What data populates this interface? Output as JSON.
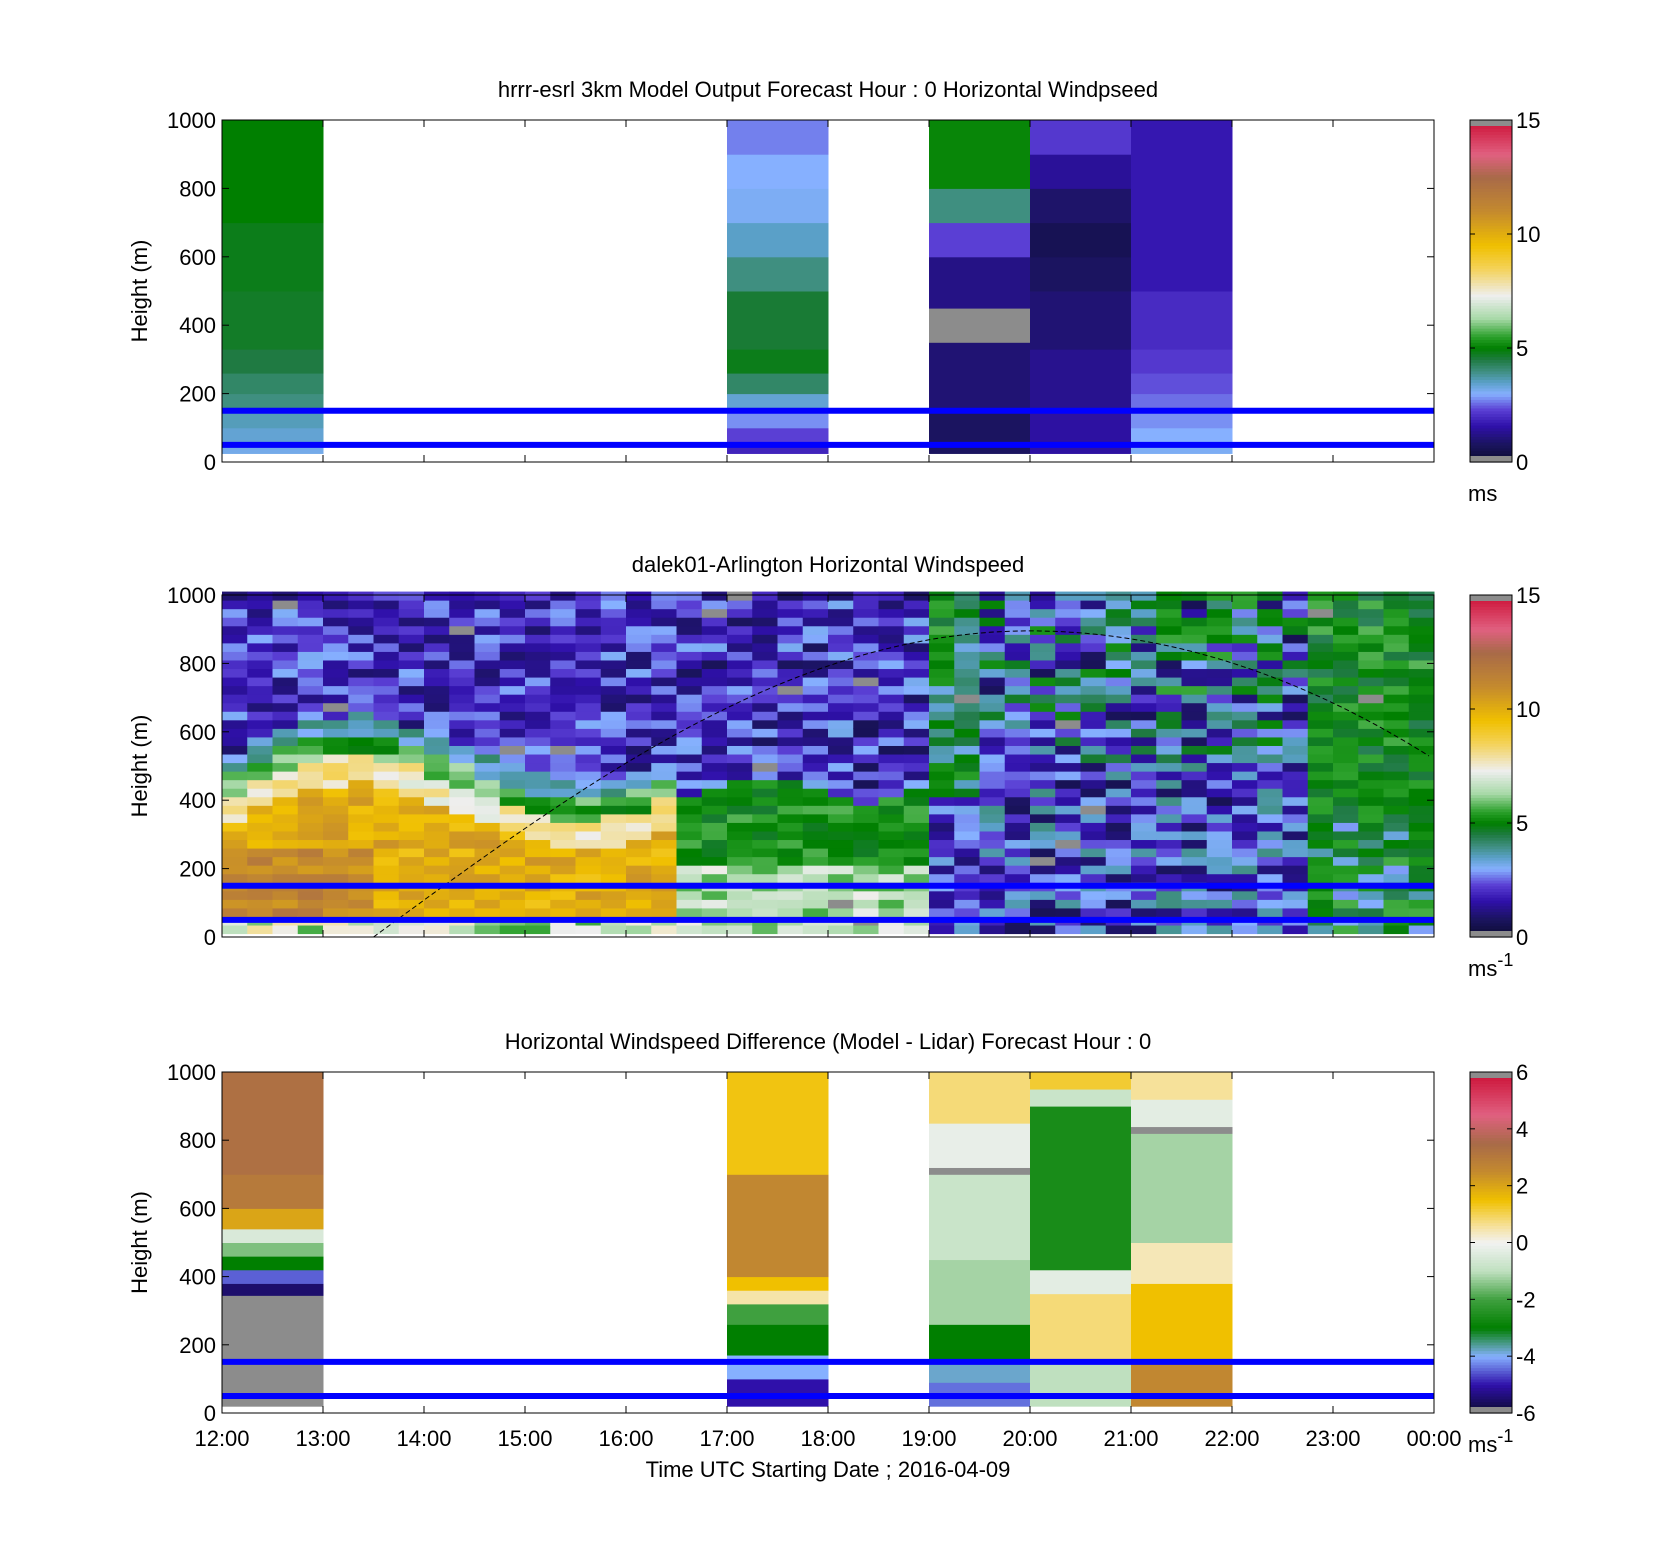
{
  "chart_data": [
    {
      "type": "heatmap",
      "id": "model",
      "title": "hrrr-esrl 3km Model Output   Forecast Hour : 0 Horizontal Windpseed",
      "ylabel": "Height (m)",
      "xlim": [
        12,
        24
      ],
      "ylim": [
        0,
        1000
      ],
      "yticks": [
        0,
        200,
        400,
        600,
        800,
        1000
      ],
      "xtick_labels": [
        "",
        "",
        "",
        "",
        "",
        "",
        "",
        "",
        "",
        "",
        "",
        "",
        ""
      ],
      "color_scale": {
        "min": 0,
        "max": 15,
        "ticks": [
          0,
          5,
          10,
          15
        ],
        "unit": "ms",
        "unit_sup": ""
      },
      "reference_lines_m": [
        150,
        50
      ],
      "columns": [
        {
          "t0": 12,
          "t1": 13,
          "bottom": 25,
          "levels": [
            {
              "y0": 25,
              "y1": 60,
              "v": 3.2
            },
            {
              "y0": 60,
              "y1": 100,
              "v": 3.4
            },
            {
              "y0": 100,
              "y1": 150,
              "v": 3.6
            },
            {
              "y0": 150,
              "y1": 200,
              "v": 4.0
            },
            {
              "y0": 200,
              "y1": 260,
              "v": 4.2
            },
            {
              "y0": 260,
              "y1": 330,
              "v": 4.5
            },
            {
              "y0": 330,
              "y1": 500,
              "v": 4.7
            },
            {
              "y0": 500,
              "y1": 700,
              "v": 4.8
            },
            {
              "y0": 700,
              "y1": 1000,
              "v": 5.0
            }
          ]
        },
        {
          "t0": 17,
          "t1": 18,
          "bottom": 25,
          "levels": [
            {
              "y0": 25,
              "y1": 60,
              "v": 1.9
            },
            {
              "y0": 60,
              "y1": 100,
              "v": 2.3
            },
            {
              "y0": 100,
              "y1": 150,
              "v": 2.8
            },
            {
              "y0": 150,
              "y1": 200,
              "v": 3.4
            },
            {
              "y0": 200,
              "y1": 260,
              "v": 4.2
            },
            {
              "y0": 260,
              "y1": 330,
              "v": 4.8
            },
            {
              "y0": 330,
              "y1": 500,
              "v": 4.6
            },
            {
              "y0": 500,
              "y1": 600,
              "v": 4.0
            },
            {
              "y0": 600,
              "y1": 700,
              "v": 3.5
            },
            {
              "y0": 700,
              "y1": 800,
              "v": 3.1
            },
            {
              "y0": 800,
              "y1": 900,
              "v": 3.0
            },
            {
              "y0": 900,
              "y1": 1000,
              "v": 2.7
            }
          ]
        },
        {
          "t0": 19,
          "t1": 20,
          "bottom": 25,
          "levels": [
            {
              "y0": 25,
              "y1": 150,
              "v": 0.8
            },
            {
              "y0": 150,
              "y1": 350,
              "v": 1.0
            },
            {
              "y0": 350,
              "y1": 450,
              "v": 15.0
            },
            {
              "y0": 450,
              "y1": 600,
              "v": 1.2
            },
            {
              "y0": 600,
              "y1": 700,
              "v": 2.3
            },
            {
              "y0": 700,
              "y1": 800,
              "v": 4.0
            },
            {
              "y0": 800,
              "y1": 1000,
              "v": 5.1
            }
          ]
        },
        {
          "t0": 20,
          "t1": 21,
          "bottom": 25,
          "levels": [
            {
              "y0": 25,
              "y1": 150,
              "v": 1.5
            },
            {
              "y0": 150,
              "y1": 330,
              "v": 1.3
            },
            {
              "y0": 330,
              "y1": 500,
              "v": 1.0
            },
            {
              "y0": 500,
              "y1": 600,
              "v": 0.8
            },
            {
              "y0": 600,
              "y1": 700,
              "v": 0.6
            },
            {
              "y0": 700,
              "y1": 800,
              "v": 0.9
            },
            {
              "y0": 800,
              "y1": 900,
              "v": 1.4
            },
            {
              "y0": 900,
              "y1": 1000,
              "v": 2.2
            }
          ]
        },
        {
          "t0": 21,
          "t1": 22,
          "bottom": 25,
          "levels": [
            {
              "y0": 25,
              "y1": 60,
              "v": 3.1
            },
            {
              "y0": 60,
              "y1": 100,
              "v": 3.0
            },
            {
              "y0": 100,
              "y1": 150,
              "v": 2.8
            },
            {
              "y0": 150,
              "y1": 200,
              "v": 2.6
            },
            {
              "y0": 200,
              "y1": 260,
              "v": 2.4
            },
            {
              "y0": 260,
              "y1": 330,
              "v": 2.2
            },
            {
              "y0": 330,
              "y1": 500,
              "v": 2.0
            },
            {
              "y0": 500,
              "y1": 1000,
              "v": 1.7
            }
          ]
        }
      ]
    },
    {
      "type": "heatmap",
      "id": "lidar",
      "title": "dalek01-Arlington  Horizontal Windspeed",
      "ylabel": "Height (m)",
      "xlim": [
        12,
        24
      ],
      "ylim": [
        0,
        1000
      ],
      "yticks": [
        0,
        200,
        400,
        600,
        800,
        1000
      ],
      "xtick_labels": [
        "",
        "",
        "",
        "",
        "",
        "",
        "",
        "",
        "",
        "",
        "",
        "",
        ""
      ],
      "color_scale": {
        "min": 0,
        "max": 15,
        "ticks": [
          0,
          5,
          10,
          15
        ],
        "unit": "ms",
        "unit_sup": "-1"
      },
      "reference_lines_m": [
        150,
        50
      ],
      "boundary_layer_curve": {
        "t_start": 13.5,
        "t_peak": 20.0,
        "h_peak": 895,
        "t_end": 24.0,
        "h_end": 520
      },
      "time_step_h": 0.25,
      "time_end": 23.9,
      "level_step_m": 25,
      "bottom_m": 10
    },
    {
      "type": "heatmap",
      "id": "diff",
      "title": "Horizontal Windspeed Difference (Model - Lidar) Forecast Hour : 0",
      "ylabel": "Height (m)",
      "xlabel": "Time UTC  Starting Date ; 2016-04-09",
      "xlim": [
        12,
        24
      ],
      "ylim": [
        0,
        1000
      ],
      "yticks": [
        0,
        200,
        400,
        600,
        800,
        1000
      ],
      "xtick_labels": [
        "12:00",
        "13:00",
        "14:00",
        "15:00",
        "16:00",
        "17:00",
        "18:00",
        "19:00",
        "20:00",
        "21:00",
        "22:00",
        "23:00",
        "00:00"
      ],
      "color_scale": {
        "min": -6,
        "max": 6,
        "ticks": [
          -6,
          -4,
          -2,
          0,
          2,
          4,
          6
        ],
        "unit": "ms",
        "unit_sup": "-1"
      },
      "reference_lines_m": [
        150,
        50
      ],
      "columns": [
        {
          "t0": 12,
          "t1": 13,
          "bottom": 20,
          "levels": [
            {
              "y0": 20,
              "y1": 345,
              "v": 6.0
            },
            {
              "y0": 345,
              "y1": 380,
              "v": -5.5
            },
            {
              "y0": 380,
              "y1": 420,
              "v": -4.5
            },
            {
              "y0": 420,
              "y1": 460,
              "v": -3.0
            },
            {
              "y0": 460,
              "y1": 500,
              "v": -1.5
            },
            {
              "y0": 500,
              "y1": 540,
              "v": -0.5
            },
            {
              "y0": 540,
              "y1": 600,
              "v": 2.0
            },
            {
              "y0": 600,
              "y1": 700,
              "v": 3.0
            },
            {
              "y0": 700,
              "y1": 1000,
              "v": 3.3
            }
          ]
        },
        {
          "t0": 17,
          "t1": 18,
          "bottom": 20,
          "levels": [
            {
              "y0": 20,
              "y1": 100,
              "v": -5.0
            },
            {
              "y0": 100,
              "y1": 170,
              "v": -4.0
            },
            {
              "y0": 170,
              "y1": 260,
              "v": -3.0
            },
            {
              "y0": 260,
              "y1": 320,
              "v": -2.0
            },
            {
              "y0": 320,
              "y1": 360,
              "v": 0.5
            },
            {
              "y0": 360,
              "y1": 400,
              "v": 1.5
            },
            {
              "y0": 400,
              "y1": 700,
              "v": 2.6
            },
            {
              "y0": 700,
              "y1": 1000,
              "v": 1.4
            }
          ]
        },
        {
          "t0": 19,
          "t1": 20,
          "bottom": 20,
          "levels": [
            {
              "y0": 20,
              "y1": 90,
              "v": -4.4
            },
            {
              "y0": 90,
              "y1": 150,
              "v": -3.8
            },
            {
              "y0": 150,
              "y1": 260,
              "v": -3.0
            },
            {
              "y0": 260,
              "y1": 450,
              "v": -1.2
            },
            {
              "y0": 450,
              "y1": 700,
              "v": -0.8
            },
            {
              "y0": 700,
              "y1": 720,
              "v": 6.0
            },
            {
              "y0": 720,
              "y1": 850,
              "v": -0.2
            },
            {
              "y0": 850,
              "y1": 1000,
              "v": 0.8
            }
          ]
        },
        {
          "t0": 20,
          "t1": 21,
          "bottom": 20,
          "levels": [
            {
              "y0": 20,
              "y1": 150,
              "v": -1.0
            },
            {
              "y0": 150,
              "y1": 350,
              "v": 0.8
            },
            {
              "y0": 350,
              "y1": 420,
              "v": -0.3
            },
            {
              "y0": 420,
              "y1": 900,
              "v": -2.6
            },
            {
              "y0": 900,
              "y1": 950,
              "v": -0.8
            },
            {
              "y0": 950,
              "y1": 1000,
              "v": 1.2
            }
          ]
        },
        {
          "t0": 21,
          "t1": 22,
          "bottom": 20,
          "levels": [
            {
              "y0": 20,
              "y1": 150,
              "v": 2.6
            },
            {
              "y0": 150,
              "y1": 380,
              "v": 1.5
            },
            {
              "y0": 380,
              "y1": 500,
              "v": 0.4
            },
            {
              "y0": 500,
              "y1": 820,
              "v": -1.2
            },
            {
              "y0": 820,
              "y1": 840,
              "v": 6.0
            },
            {
              "y0": 840,
              "y1": 920,
              "v": -0.3
            },
            {
              "y0": 920,
              "y1": 1000,
              "v": 0.6
            }
          ]
        }
      ]
    }
  ],
  "colors": {
    "reference_line": "#0000ff",
    "bad_data": "#8c8c8c",
    "speed_colormap": [
      [
        0,
        "#0b0b2e"
      ],
      [
        0.8,
        "#1b1460"
      ],
      [
        1.6,
        "#2f10aa"
      ],
      [
        2.3,
        "#5a3fd4"
      ],
      [
        3.0,
        "#86b0ff"
      ],
      [
        3.5,
        "#5aa0c8"
      ],
      [
        4.0,
        "#3f8f80"
      ],
      [
        4.5,
        "#1f7a42"
      ],
      [
        5.0,
        "#007f00"
      ],
      [
        5.5,
        "#2aa02a"
      ],
      [
        6.3,
        "#a7d9a7"
      ],
      [
        7.3,
        "#eeeeee"
      ],
      [
        8.5,
        "#f4d258"
      ],
      [
        9.5,
        "#f0c000"
      ],
      [
        11.0,
        "#c48a2e"
      ],
      [
        12.5,
        "#a86a48"
      ],
      [
        13.5,
        "#e06080"
      ],
      [
        15.0,
        "#cc1035"
      ]
    ],
    "diff_colormap": [
      [
        -6,
        "#0b0b2e"
      ],
      [
        -5,
        "#2f10aa"
      ],
      [
        -4,
        "#86b0ff"
      ],
      [
        -3,
        "#007f00"
      ],
      [
        -2,
        "#3fa03f"
      ],
      [
        -1,
        "#bfe0bf"
      ],
      [
        0,
        "#f2f2f2"
      ],
      [
        0.6,
        "#f6e19a"
      ],
      [
        1.5,
        "#f0c000"
      ],
      [
        2.5,
        "#c48a2e"
      ],
      [
        3.5,
        "#a86a48"
      ],
      [
        4.5,
        "#e06080"
      ],
      [
        6,
        "#cc1035"
      ]
    ]
  }
}
